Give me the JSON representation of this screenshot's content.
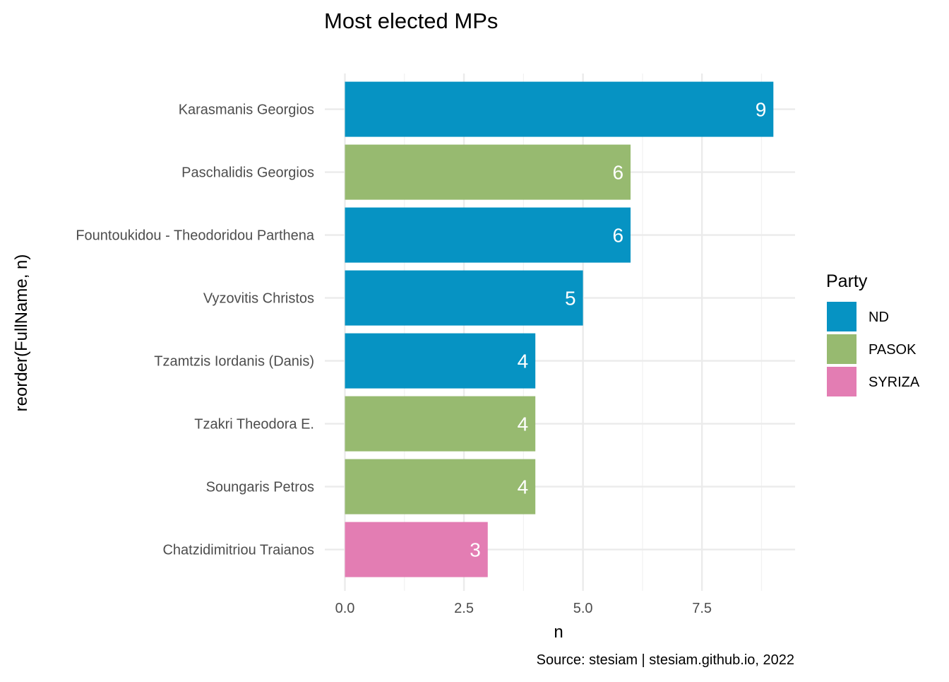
{
  "chart_data": {
    "type": "bar",
    "orientation": "horizontal",
    "title": "Most elected MPs",
    "xlabel": "n",
    "ylabel": "reorder(FullName, n)",
    "caption": "Source: stesiam | stesiam.github.io, 2022",
    "xlim": [
      0,
      9.4
    ],
    "x_ticks": [
      0.0,
      2.5,
      5.0,
      7.5
    ],
    "x_tick_labels": [
      "0.0",
      "2.5",
      "5.0",
      "7.5"
    ],
    "grid": true,
    "legend": {
      "title": "Party",
      "placement": "right",
      "entries": [
        {
          "name": "ND",
          "color": "#0693c3"
        },
        {
          "name": "PASOK",
          "color": "#97ba70"
        },
        {
          "name": "SYRIZA",
          "color": "#e37db3"
        }
      ]
    },
    "bars": [
      {
        "category": "Karasmanis Georgios",
        "value": 9,
        "party": "ND"
      },
      {
        "category": "Paschalidis Georgios",
        "value": 6,
        "party": "PASOK"
      },
      {
        "category": "Fountoukidou - Theodoridou Parthena",
        "value": 6,
        "party": "ND"
      },
      {
        "category": "Vyzovitis Christos",
        "value": 5,
        "party": "ND"
      },
      {
        "category": "Tzamtzis Iordanis (Danis)",
        "value": 4,
        "party": "ND"
      },
      {
        "category": "Tzakri Theodora E.",
        "value": 4,
        "party": "PASOK"
      },
      {
        "category": "Soungaris Petros",
        "value": 4,
        "party": "PASOK"
      },
      {
        "category": "Chatzidimitriou Traianos",
        "value": 3,
        "party": "SYRIZA"
      }
    ]
  }
}
